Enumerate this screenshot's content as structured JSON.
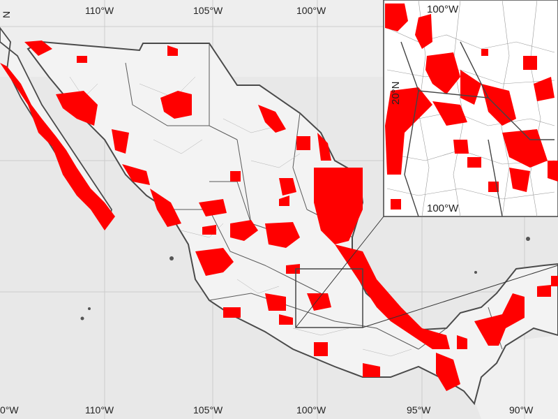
{
  "map": {
    "graticule_labels": {
      "top": [
        "110°W",
        "105°W",
        "100°W"
      ],
      "bottom": [
        "0°W",
        "110°W",
        "105°W",
        "100°W",
        "95°W",
        "90°W"
      ],
      "left": [
        "N"
      ]
    },
    "inset": {
      "labels": {
        "top_lon": "100°W",
        "bottom_lon": "100°W",
        "lat": "20°N"
      }
    },
    "colors": {
      "ocean": "#e9e9e9",
      "land": "#f2f2f2",
      "highlight": "#ff0000",
      "borders": "#4a4a4a",
      "graticule": "#c4c4c4"
    }
  }
}
